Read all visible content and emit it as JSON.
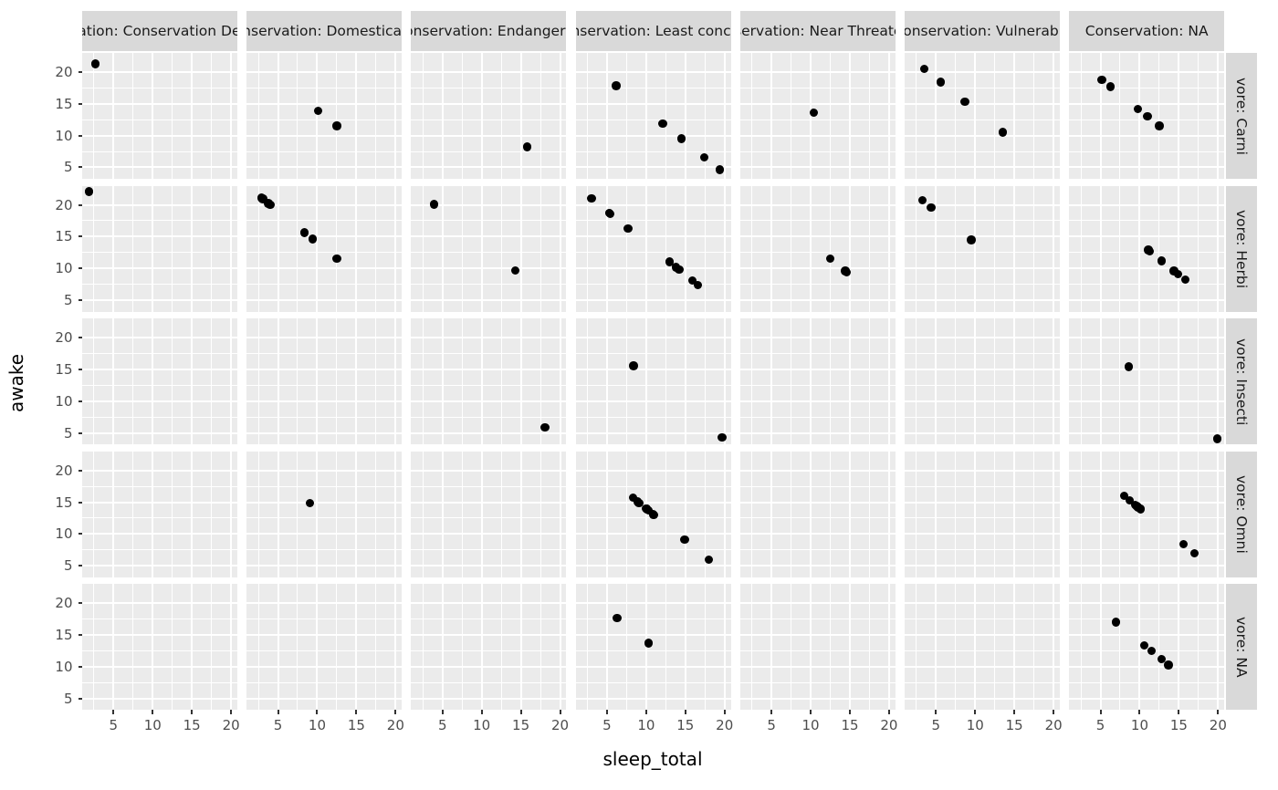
{
  "chart_data": {
    "type": "scatter",
    "title": "",
    "xlabel": "sleep_total",
    "ylabel": "awake",
    "x_ticks": [
      5,
      10,
      15,
      20
    ],
    "y_ticks": [
      5,
      10,
      15,
      20
    ],
    "x_minor": [
      2.5,
      7.5,
      12.5,
      17.5
    ],
    "y_minor": [
      2.5,
      7.5,
      12.5,
      17.5
    ],
    "x_range": [
      1.0,
      20.8
    ],
    "y_range": [
      3.2,
      23.0
    ],
    "grid": true,
    "legend_position": "none",
    "point_color": "#000000",
    "panel_bg": "#EBEBEB",
    "strip_bg": "#D9D9D9",
    "facet": {
      "row_var": "vore",
      "col_var": "Conservation",
      "row_values": [
        "Carni",
        "Herbi",
        "Insecti",
        "Omni",
        "NA"
      ],
      "col_values": [
        "Conservation Dependent",
        "Domesticated",
        "Endangered",
        "Least concern",
        "Near Threatened",
        "Vulnerable",
        "NA"
      ],
      "row_strip_labels": [
        "vore: Carni",
        "vore: Herbi",
        "vore: Insecti",
        "vore: Omni",
        "vore: NA"
      ],
      "col_strip_labels": [
        "Conservation: Conservation Dependent",
        "Conservation: Domesticated",
        "Conservation: Endangered",
        "Conservation: Least concern",
        "Conservation: Near Threatened",
        "Conservation: Vulnerable",
        "Conservation: NA"
      ]
    },
    "panels": [
      {
        "row": "Carni",
        "cells": [
          [
            [
              2.7,
              21.3
            ]
          ],
          [
            [
              10.1,
              13.9
            ],
            [
              12.5,
              11.5
            ]
          ],
          [
            [
              15.8,
              8.2
            ]
          ],
          [
            [
              6.2,
              17.8
            ],
            [
              12.1,
              11.9
            ],
            [
              14.5,
              9.5
            ],
            [
              17.4,
              6.6
            ],
            [
              19.4,
              4.6
            ]
          ],
          [
            [
              10.4,
              13.6
            ]
          ],
          [
            [
              3.5,
              20.5
            ],
            [
              5.6,
              18.4
            ],
            [
              8.7,
              15.3
            ],
            [
              13.5,
              10.5
            ]
          ],
          [
            [
              5.2,
              18.8
            ],
            [
              6.3,
              17.7
            ],
            [
              9.8,
              14.2
            ],
            [
              11.0,
              13.0
            ],
            [
              12.5,
              11.5
            ]
          ]
        ]
      },
      {
        "row": "Herbi",
        "cells": [
          [
            [
              1.9,
              22.1
            ]
          ],
          [
            [
              2.9,
              21.1
            ],
            [
              3.1,
              20.9
            ],
            [
              3.8,
              20.2
            ],
            [
              4.0,
              20.0
            ],
            [
              8.4,
              15.6
            ],
            [
              9.4,
              14.6
            ],
            [
              12.5,
              11.5
            ]
          ],
          [
            [
              3.9,
              20.1
            ],
            [
              14.3,
              9.7
            ]
          ],
          [
            [
              3.0,
              21.0
            ],
            [
              5.3,
              18.7
            ],
            [
              5.3,
              18.7
            ],
            [
              5.4,
              18.6
            ],
            [
              7.7,
              16.3
            ],
            [
              13.0,
              11.0
            ],
            [
              13.8,
              10.2
            ],
            [
              14.2,
              9.8
            ],
            [
              15.9,
              8.1
            ],
            [
              16.6,
              7.4
            ]
          ],
          [
            [
              12.5,
              11.5
            ],
            [
              14.4,
              9.6
            ],
            [
              14.6,
              9.4
            ]
          ],
          [
            [
              3.3,
              20.7
            ],
            [
              4.4,
              19.6
            ],
            [
              9.5,
              14.5
            ]
          ],
          [
            [
              11.1,
              12.9
            ],
            [
              11.3,
              12.7
            ],
            [
              12.8,
              11.2
            ],
            [
              14.4,
              9.6
            ],
            [
              14.9,
              9.1
            ],
            [
              15.8,
              8.2
            ]
          ]
        ]
      },
      {
        "row": "Insecti",
        "cells": [
          [],
          [],
          [
            [
              18.1,
              5.9
            ]
          ],
          [
            [
              8.4,
              15.6
            ],
            [
              19.7,
              4.3
            ]
          ],
          [],
          [],
          [
            [
              8.6,
              15.4
            ],
            [
              19.9,
              4.1
            ]
          ]
        ]
      },
      {
        "row": "Omni",
        "cells": [
          [],
          [
            [
              9.1,
              14.9
            ]
          ],
          [],
          [
            [
              8.3,
              15.7
            ],
            [
              8.9,
              15.1
            ],
            [
              9.1,
              14.9
            ],
            [
              10.0,
              14.0
            ],
            [
              10.1,
              13.9
            ],
            [
              10.3,
              13.7
            ],
            [
              10.9,
              13.1
            ],
            [
              11.0,
              13.0
            ],
            [
              14.9,
              9.1
            ],
            [
              18.0,
              6.0
            ]
          ],
          [],
          [],
          [
            [
              8.0,
              16.0
            ],
            [
              8.7,
              15.3
            ],
            [
              9.4,
              14.6
            ],
            [
              9.6,
              14.4
            ],
            [
              9.7,
              14.3
            ],
            [
              9.8,
              14.2
            ],
            [
              10.1,
              13.9
            ],
            [
              15.6,
              8.4
            ],
            [
              17.0,
              7.0
            ]
          ]
        ]
      },
      {
        "row": "NA",
        "cells": [
          [],
          [],
          [],
          [
            [
              6.3,
              17.7
            ],
            [
              10.3,
              13.7
            ]
          ],
          [],
          [],
          [
            [
              7.0,
              17.0
            ],
            [
              10.6,
              13.4
            ],
            [
              11.5,
              12.5
            ],
            [
              12.8,
              11.2
            ],
            [
              13.7,
              10.3
            ]
          ]
        ]
      }
    ]
  }
}
